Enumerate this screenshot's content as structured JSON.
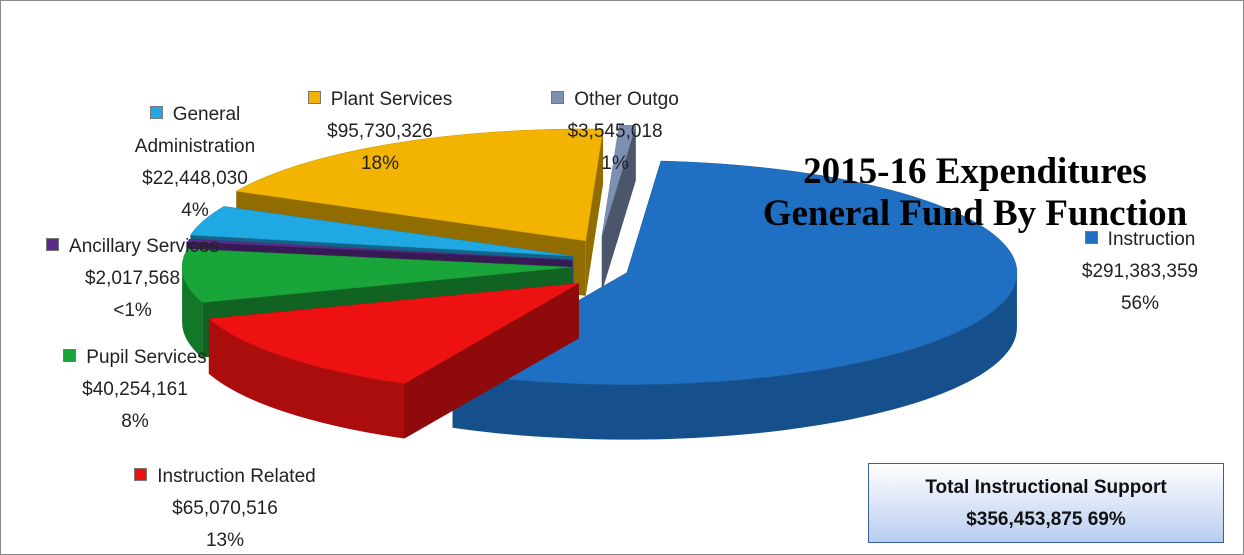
{
  "chart_data": {
    "type": "pie3d",
    "title": "2015-16 Expenditures",
    "subtitle": "General Fund By Function",
    "categories": [
      "Instruction",
      "Instruction Related",
      "Pupil Services",
      "Ancillary Services",
      "General Administration",
      "Plant Services",
      "Other Outgo"
    ],
    "values": [
      291383359,
      65070516,
      40254161,
      2017568,
      22448030,
      95730326,
      3545018
    ],
    "value_labels": [
      "$291,383,359",
      "$65,070,516",
      "$40,254,161",
      "$2,017,568",
      "$22,448,030",
      "$95,730,326",
      "$3,545,018"
    ],
    "share_labels": [
      "56%",
      "13%",
      "8%",
      "<1%",
      "4%",
      "18%",
      "1%"
    ],
    "colors": [
      "#1f6fc2",
      "#ee1111",
      "#1aa53a",
      "#5b2b8c",
      "#1fa8e2",
      "#f2b400",
      "#7d90b3"
    ],
    "annotation": {
      "heading": "Total Instructional Support",
      "text": "$356,453,875 69%"
    }
  }
}
